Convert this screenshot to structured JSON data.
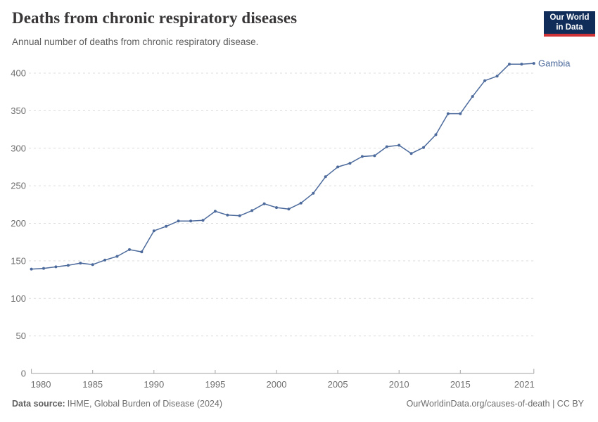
{
  "header": {
    "title": "Deaths from chronic respiratory diseases",
    "subtitle": "Annual number of deaths from chronic respiratory disease.",
    "logo_line1": "Our World",
    "logo_line2": "in Data"
  },
  "footer": {
    "source_label": "Data source:",
    "source_text": "IHME, Global Burden of Disease (2024)",
    "credit": "OurWorldinData.org/causes-of-death | CC BY"
  },
  "colors": {
    "accent": "#4C6A9C",
    "grid": "#dcdcdc",
    "axis": "#a3a3a3",
    "tick_label": "#6e6e6e",
    "logo_bg": "#102d59",
    "logo_red": "#d03335",
    "title_text": "#383636"
  },
  "chart_data": {
    "type": "line",
    "title": "Deaths from chronic respiratory diseases",
    "subtitle": "Annual number of deaths from chronic respiratory disease.",
    "xlabel": "",
    "ylabel": "",
    "xlim": [
      1980,
      2021
    ],
    "ylim": [
      0,
      420
    ],
    "x_ticks": [
      1980,
      1985,
      1990,
      1995,
      2000,
      2005,
      2010,
      2015,
      2021
    ],
    "y_ticks": [
      0,
      50,
      100,
      150,
      200,
      250,
      300,
      350,
      400
    ],
    "grid": "horizontal-dashed",
    "legend_position": "end-of-line",
    "series": [
      {
        "name": "Gambia",
        "color": "#4C6A9C",
        "x": [
          1980,
          1981,
          1982,
          1983,
          1984,
          1985,
          1986,
          1987,
          1988,
          1989,
          1990,
          1991,
          1992,
          1993,
          1994,
          1995,
          1996,
          1997,
          1998,
          1999,
          2000,
          2001,
          2002,
          2003,
          2004,
          2005,
          2006,
          2007,
          2008,
          2009,
          2010,
          2011,
          2012,
          2013,
          2014,
          2015,
          2016,
          2017,
          2018,
          2019,
          2020,
          2021
        ],
        "values": [
          139,
          140,
          142,
          144,
          147,
          145,
          151,
          156,
          165,
          162,
          190,
          196,
          203,
          203,
          204,
          216,
          211,
          210,
          217,
          226,
          221,
          219,
          227,
          240,
          262,
          275,
          280,
          289,
          290,
          302,
          304,
          293,
          301,
          318,
          346,
          346,
          369,
          390,
          396,
          412,
          412,
          413
        ]
      }
    ]
  }
}
